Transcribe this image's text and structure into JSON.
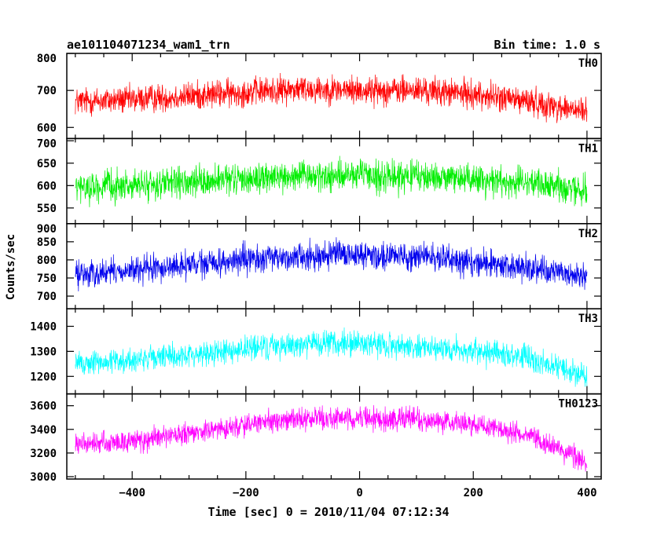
{
  "header": {
    "title": "ae101104071234_wam1_trn",
    "bin_time": "Bin time: 1.0 s"
  },
  "chart_data": {
    "type": "line",
    "title": "ae101104071234_wam1_trn",
    "xlabel": "Time [sec] 0 = 2010/11/04 07:12:34",
    "ylabel": "Counts/sec",
    "xlim": [
      -515,
      425
    ],
    "x_ticks": [
      -400,
      -200,
      0,
      200,
      400
    ],
    "grid": false,
    "panels": [
      {
        "name": "TH0",
        "color": "#ff0000",
        "ylim": [
          570,
          800
        ],
        "y_ticks": [
          600,
          700,
          800
        ],
        "profile": {
          "x": [
            -500,
            -400,
            -300,
            -200,
            -100,
            0,
            100,
            200,
            300,
            400
          ],
          "y": [
            670,
            675,
            685,
            695,
            705,
            700,
            700,
            690,
            670,
            640
          ]
        },
        "noise_amplitude": 45
      },
      {
        "name": "TH1",
        "color": "#00ee00",
        "ylim": [
          515,
          705
        ],
        "y_ticks": [
          550,
          600,
          650,
          700
        ],
        "profile": {
          "x": [
            -500,
            -400,
            -300,
            -200,
            -100,
            0,
            100,
            200,
            300,
            400
          ],
          "y": [
            595,
            600,
            605,
            615,
            620,
            622,
            620,
            615,
            605,
            590
          ]
        },
        "noise_amplitude": 40
      },
      {
        "name": "TH2",
        "color": "#0000ee",
        "ylim": [
          665,
          900
        ],
        "y_ticks": [
          700,
          750,
          800,
          850,
          900
        ],
        "profile": {
          "x": [
            -500,
            -400,
            -300,
            -200,
            -100,
            0,
            100,
            200,
            300,
            400
          ],
          "y": [
            760,
            770,
            785,
            800,
            810,
            815,
            810,
            795,
            775,
            755
          ]
        },
        "noise_amplitude": 45
      },
      {
        "name": "TH3",
        "color": "#00ffff",
        "ylim": [
          1130,
          1470
        ],
        "y_ticks": [
          1200,
          1300,
          1400
        ],
        "profile": {
          "x": [
            -500,
            -400,
            -300,
            -200,
            -100,
            0,
            100,
            200,
            300,
            400
          ],
          "y": [
            1250,
            1265,
            1285,
            1310,
            1330,
            1330,
            1320,
            1300,
            1270,
            1200
          ]
        },
        "noise_amplitude": 60
      },
      {
        "name": "TH0123",
        "color": "#ff00ff",
        "ylim": [
          2980,
          3700
        ],
        "y_ticks": [
          3000,
          3200,
          3400,
          3600
        ],
        "profile": {
          "x": [
            -500,
            -400,
            -300,
            -200,
            -100,
            0,
            100,
            200,
            300,
            400
          ],
          "y": [
            3270,
            3300,
            3360,
            3440,
            3490,
            3500,
            3480,
            3440,
            3350,
            3120
          ]
        },
        "noise_amplitude": 110
      }
    ]
  }
}
